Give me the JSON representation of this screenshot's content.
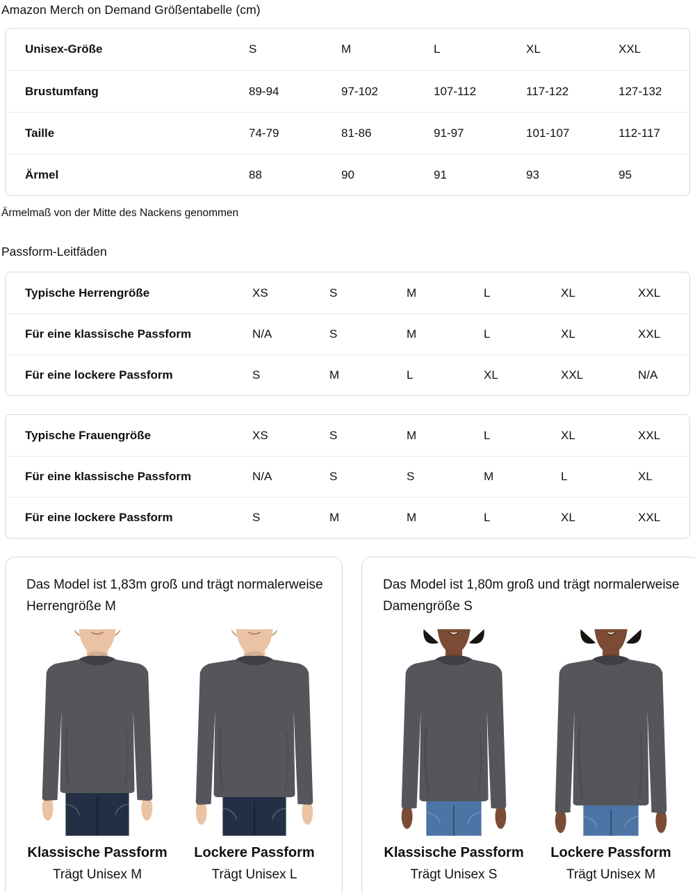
{
  "page": {
    "title": "Amazon Merch on Demand Größentabelle (cm)",
    "sleeve_note": "Ärmelmaß von der Mitte des Nackens genommen",
    "fit_section_title": "Passform-Leitfäden"
  },
  "size_table": {
    "rows": [
      {
        "label": "Unisex-Größe",
        "values": [
          "S",
          "M",
          "L",
          "XL",
          "XXL"
        ]
      },
      {
        "label": "Brustumfang",
        "values": [
          "89-94",
          "97-102",
          "107-112",
          "117-122",
          "127-132"
        ]
      },
      {
        "label": "Taille",
        "values": [
          "74-79",
          "81-86",
          "91-97",
          "101-107",
          "112-117"
        ]
      },
      {
        "label": "Ärmel",
        "values": [
          "88",
          "90",
          "91",
          "93",
          "95"
        ]
      }
    ]
  },
  "fit_tables": [
    {
      "rows": [
        {
          "label": "Typische Herrengröße",
          "values": [
            "XS",
            "S",
            "M",
            "L",
            "XL",
            "XXL"
          ]
        },
        {
          "label": "Für eine klassische Passform",
          "values": [
            "N/A",
            "S",
            "M",
            "L",
            "XL",
            "XXL"
          ]
        },
        {
          "label": "Für eine lockere Passform",
          "values": [
            "S",
            "M",
            "L",
            "XL",
            "XXL",
            "N/A"
          ]
        }
      ]
    },
    {
      "rows": [
        {
          "label": "Typische Frauengröße",
          "values": [
            "XS",
            "S",
            "M",
            "L",
            "XL",
            "XXL"
          ]
        },
        {
          "label": "Für eine klassische Passform",
          "values": [
            "N/A",
            "S",
            "S",
            "M",
            "L",
            "XL"
          ]
        },
        {
          "label": "Für eine lockere Passform",
          "values": [
            "S",
            "M",
            "M",
            "L",
            "XL",
            "XXL"
          ]
        }
      ]
    }
  ],
  "model_cards": [
    {
      "description": "Das Model ist 1,83m groß und trägt normalerweise Herrengröße M",
      "models": [
        {
          "fit": "Klassische Passform",
          "wears": "Trägt Unisex M",
          "figure": "male-classic"
        },
        {
          "fit": "Lockere Passform",
          "wears": "Trägt Unisex L",
          "figure": "male-loose"
        }
      ]
    },
    {
      "description": "Das Model ist 1,80m groß und trägt normalerweise Damengröße S",
      "models": [
        {
          "fit": "Klassische Passform",
          "wears": "Trägt Unisex S",
          "figure": "female-classic"
        },
        {
          "fit": "Lockere Passform",
          "wears": "Trägt Unisex M",
          "figure": "female-loose"
        }
      ]
    }
  ],
  "colors": {
    "text": "#0F1111",
    "table_border": "#D5D9D9",
    "row_divider": "#E7E7E7",
    "shirt": "#55565B",
    "shirt_collar": "#3F4045",
    "male_skin": "#EAC3A4",
    "male_jeans": "#232F45",
    "male_hair": "#B99768",
    "female_skin": "#7B4B35",
    "female_jeans": "#4C74A4",
    "female_hair": "#191410"
  }
}
